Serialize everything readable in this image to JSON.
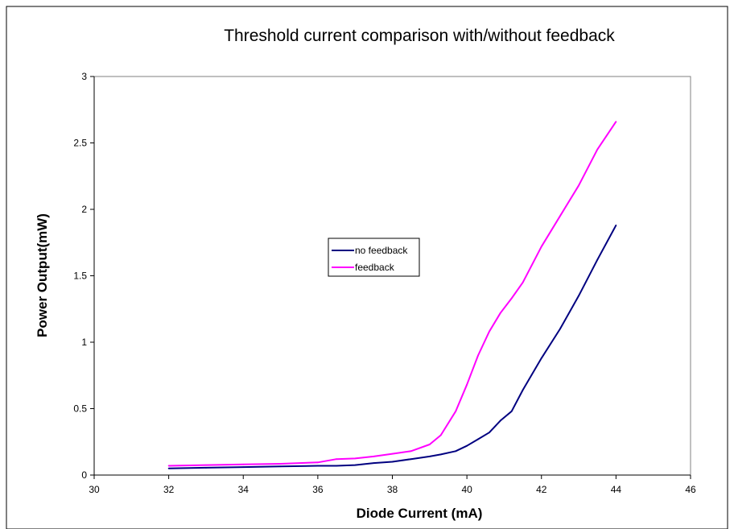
{
  "chart_data": {
    "type": "line",
    "title": "Threshold current comparison with/without feedback",
    "xlabel": "Diode Current (mA)",
    "ylabel": "Power Output(mW)",
    "xlim": [
      30,
      46
    ],
    "ylim": [
      0,
      3
    ],
    "xticks": [
      "30",
      "32",
      "34",
      "36",
      "38",
      "40",
      "42",
      "44",
      "46"
    ],
    "yticks": [
      "0",
      "0.5",
      "1",
      "1.5",
      "2",
      "2.5",
      "3"
    ],
    "grid": false,
    "legend_position": "center",
    "series": [
      {
        "name": "no feedback",
        "color": "#000080",
        "x": [
          32,
          33,
          34,
          35,
          36,
          36.5,
          37,
          37.5,
          38,
          38.5,
          39,
          39.3,
          39.7,
          40,
          40.3,
          40.6,
          40.9,
          41.2,
          41.5,
          42,
          42.5,
          43,
          43.5,
          44
        ],
        "y": [
          0.05,
          0.055,
          0.06,
          0.065,
          0.07,
          0.07,
          0.075,
          0.09,
          0.1,
          0.12,
          0.14,
          0.155,
          0.18,
          0.22,
          0.27,
          0.32,
          0.41,
          0.48,
          0.64,
          0.88,
          1.1,
          1.35,
          1.62,
          1.88
        ]
      },
      {
        "name": "feedback",
        "color": "#ff00ff",
        "x": [
          32,
          33,
          34,
          35,
          36,
          36.5,
          37,
          37.5,
          38,
          38.5,
          39,
          39.3,
          39.7,
          40,
          40.3,
          40.6,
          40.9,
          41.2,
          41.5,
          42,
          42.5,
          43,
          43.5,
          44
        ],
        "y": [
          0.07,
          0.075,
          0.08,
          0.085,
          0.095,
          0.12,
          0.125,
          0.14,
          0.16,
          0.18,
          0.23,
          0.3,
          0.48,
          0.68,
          0.9,
          1.08,
          1.22,
          1.33,
          1.45,
          1.72,
          1.95,
          2.18,
          2.45,
          2.66
        ]
      }
    ]
  }
}
